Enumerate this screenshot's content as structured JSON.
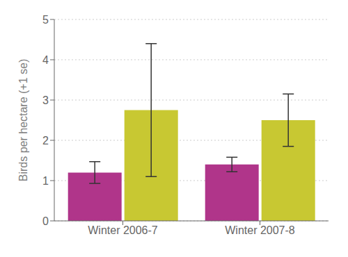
{
  "chart_data": {
    "type": "bar",
    "categories": [
      "Winter 2006-7",
      "Winter 2007-8"
    ],
    "series": [
      {
        "color": "#b0358a",
        "values": [
          1.2,
          1.4
        ],
        "errors": [
          0.27,
          0.18
        ]
      },
      {
        "color": "#c8c832",
        "values": [
          2.75,
          2.5
        ],
        "errors": [
          1.65,
          0.65
        ]
      }
    ],
    "ylabel": "Birds per hectare (+1 se)",
    "ylim": [
      0,
      5
    ],
    "yticks": [
      0,
      1,
      2,
      3,
      4,
      5
    ],
    "grid": true
  }
}
